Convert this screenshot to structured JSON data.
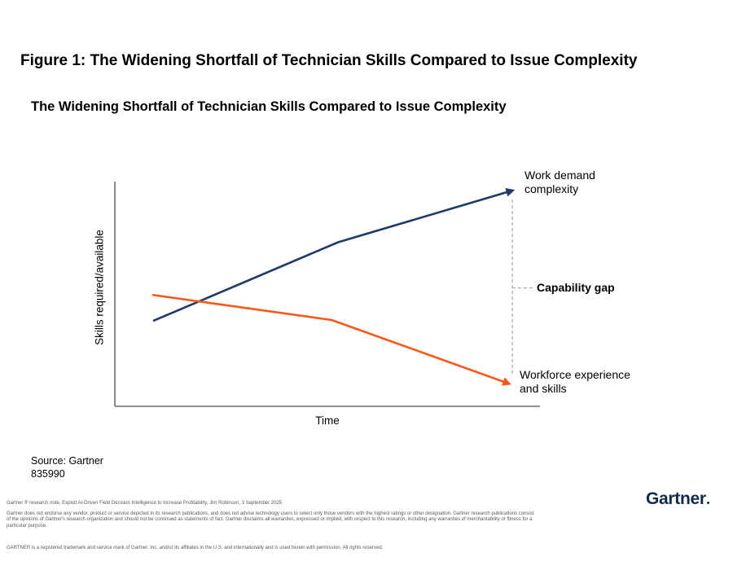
{
  "figure": {
    "title": "Figure 1: The Widening Shortfall of Technician Skills Compared to Issue Complexity"
  },
  "chart": {
    "title": "The Widening Shortfall of Technician Skills Compared to Issue Complexity",
    "y_axis_label": "Skills required/available",
    "x_axis_label": "Time",
    "labels": {
      "work_demand": "Work demand\ncomplexity",
      "capability_gap": "Capability gap",
      "workforce": "Workforce experience\nand skills"
    }
  },
  "chart_data": {
    "type": "line",
    "title": "The Widening Shortfall of Technician Skills Compared to Issue Complexity",
    "xlabel": "Time",
    "ylabel": "Skills required/available",
    "axes": {
      "numeric_ticks": false,
      "grid": false,
      "note": "conceptual chart; point coordinates given as percent of plot area"
    },
    "series": [
      {
        "name": "Work demand complexity",
        "color": "#1e3a66",
        "trend": "rising",
        "arrow_end": true,
        "points_pct": [
          [
            9,
            38
          ],
          [
            52.5,
            73
          ],
          [
            93.5,
            96
          ]
        ]
      },
      {
        "name": "Workforce experience and skills",
        "color": "#f9581a",
        "trend": "declining",
        "arrow_end": true,
        "points_pct": [
          [
            8.8,
            49.6
          ],
          [
            51,
            38.4
          ],
          [
            92.7,
            10.1
          ]
        ]
      }
    ],
    "annotations": [
      {
        "label": "Capability gap",
        "style": "bold",
        "connector": "vertical dashed line spanning the gap between the two series endpoints"
      }
    ],
    "legend_position": "end-of-line labels"
  },
  "source": {
    "line1": "Source: Gartner",
    "line2": "835990"
  },
  "logo": {
    "text": "Gartner"
  },
  "footer": {
    "note": "Gartner ® research note, Exploit AI-Driven Field Decision Intelligence to Increase Profitability, Jim Robinson, 3 September 2025",
    "disclaimer": "Gartner does not endorse any vendor, product or service depicted in its research publications, and does not advise technology users to select only those vendors with the highest ratings or other designation. Gartner research publications consist of the opinions of Gartner's research organization and should not be construed as statements of fact. Gartner disclaims all warranties, expressed or implied, with respect to this research, including any warranties of merchantability or fitness for a particular purpose.",
    "trademark": "GARTNER is a registered trademark and service mark of Gartner, Inc. and/or its affiliates in the U.S. and internationally and is used herein with permission. All rights reserved."
  },
  "colors": {
    "navy": "#1e3a66",
    "orange": "#f9581a",
    "axis_gray": "#808080",
    "dash_gray": "#a6a6a6",
    "logo_navy": "#13294b",
    "fineprint_gray": "#58595b"
  }
}
